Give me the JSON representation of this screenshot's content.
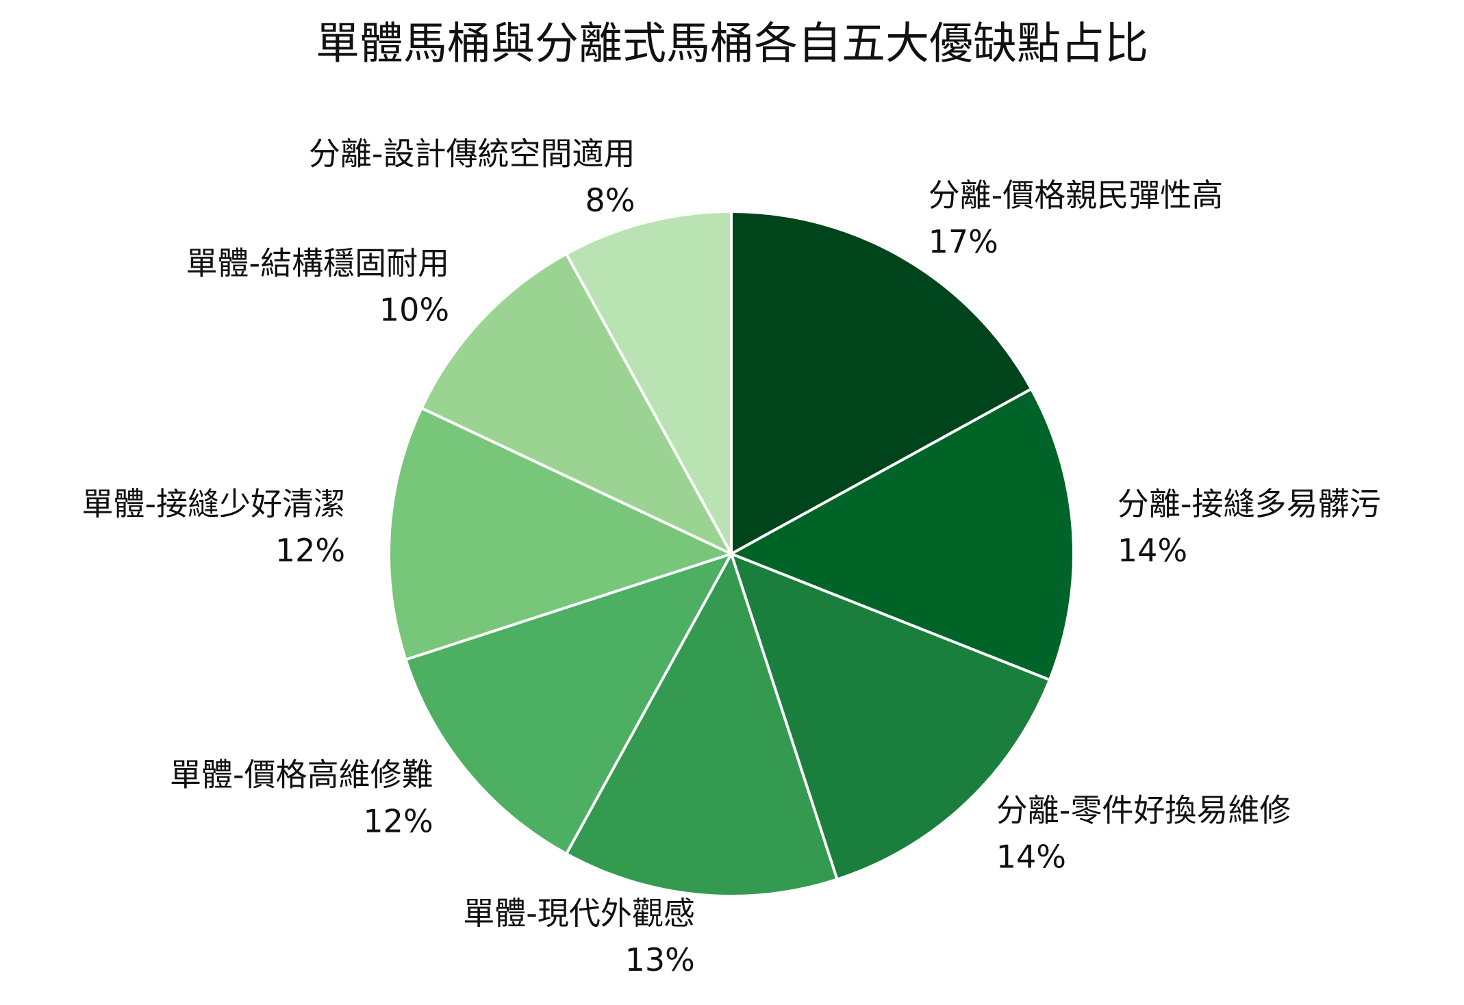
{
  "chart_data": {
    "type": "pie",
    "title": "單體馬桶與分離式馬桶各自五大優缺點占比",
    "categories": [
      "分離-價格親民彈性高",
      "分離-接縫多易髒污",
      "分離-零件好換易維修",
      "單體-現代外觀感",
      "單體-價格高維修難",
      "單體-接縫少好清潔",
      "單體-結構穩固耐用",
      "分離-設計傳統空間適用"
    ],
    "values": [
      17,
      14,
      14,
      13,
      12,
      12,
      10,
      8
    ],
    "value_labels": [
      "17%",
      "14%",
      "14%",
      "13%",
      "12%",
      "12%",
      "10%",
      "8%"
    ],
    "colors": [
      "#00441b",
      "#006428",
      "#1a7f3c",
      "#339a50",
      "#4daf62",
      "#78c679",
      "#9bd492",
      "#b9e3b2"
    ]
  }
}
